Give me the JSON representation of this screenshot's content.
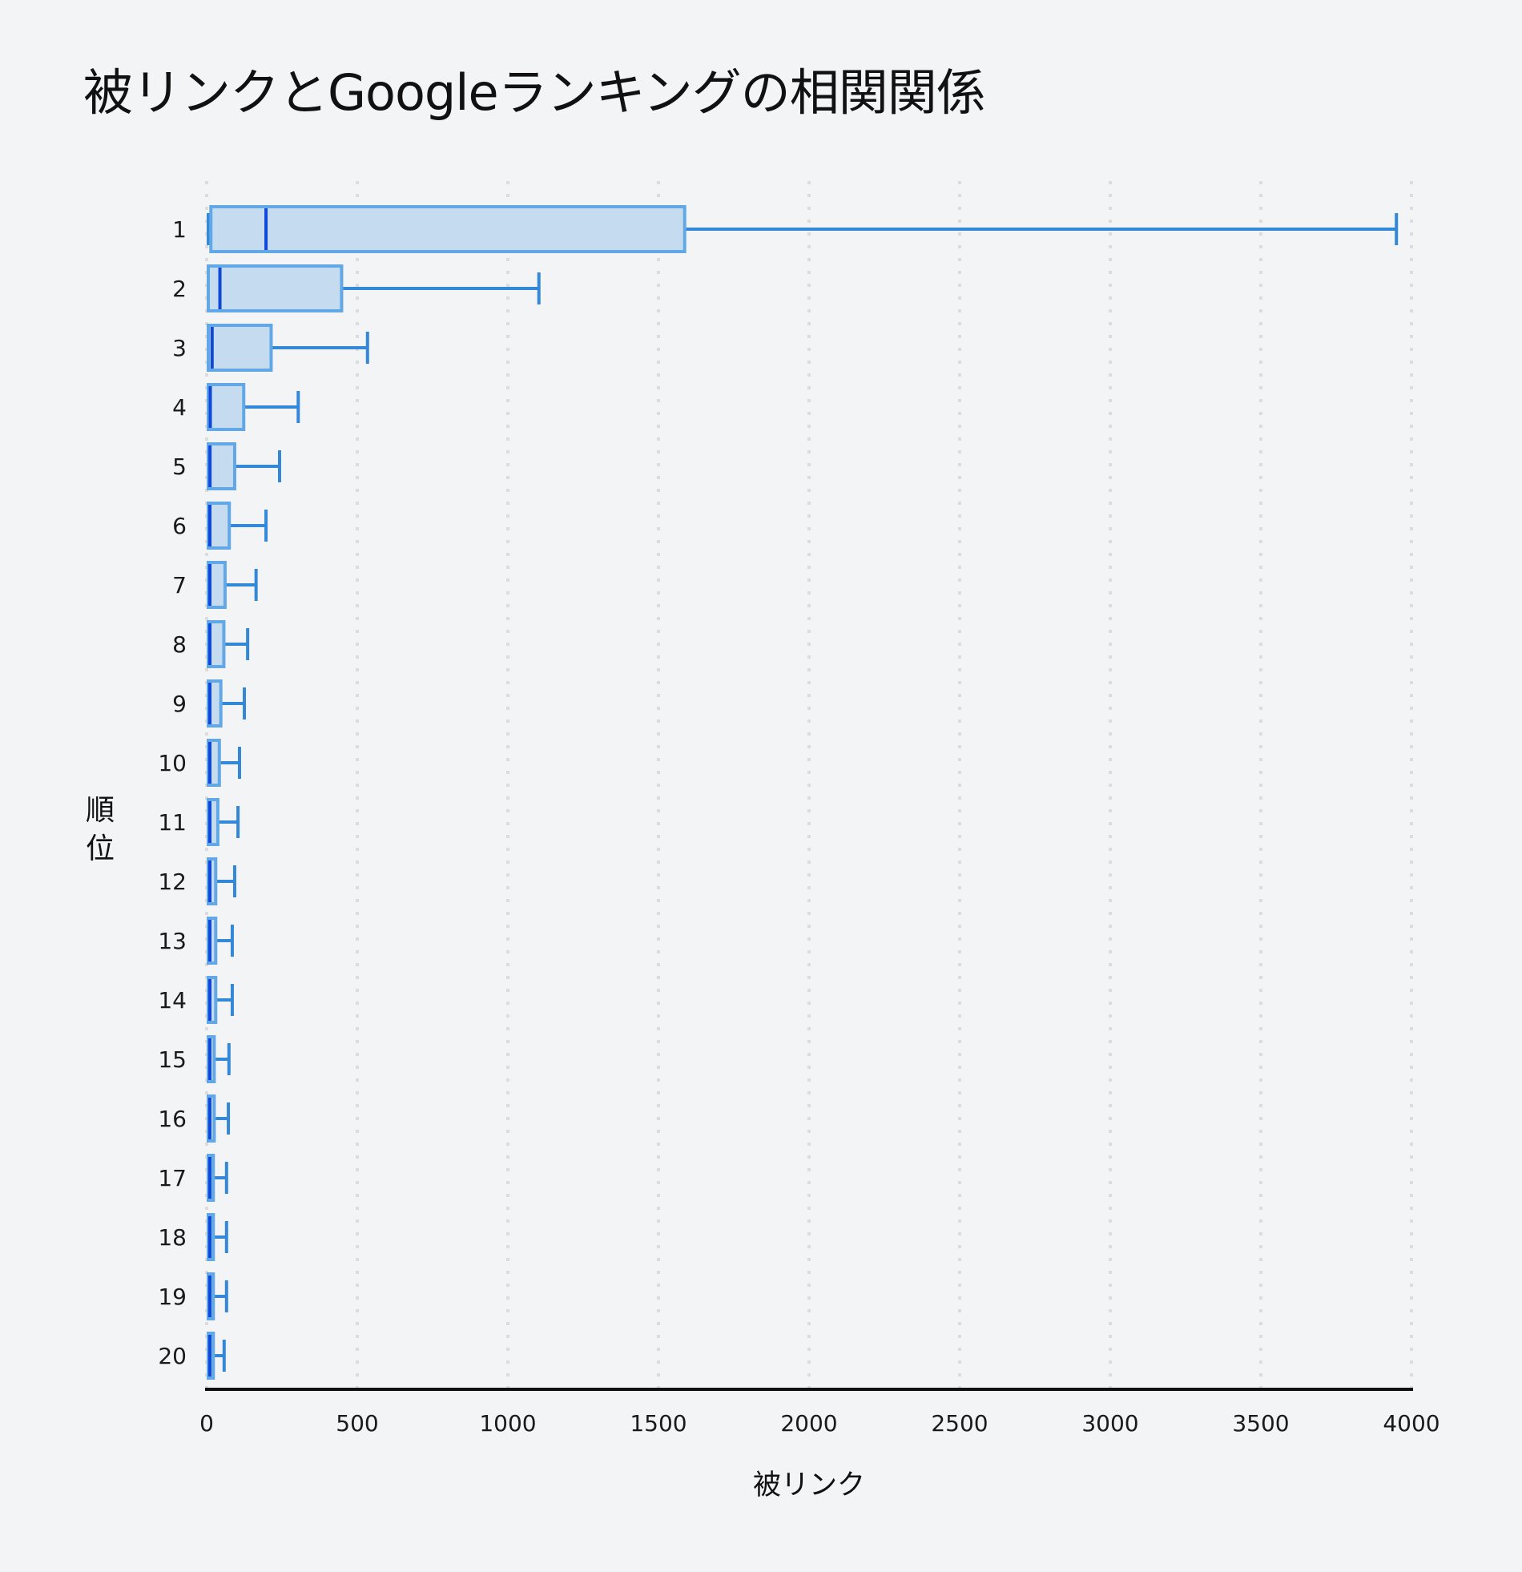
{
  "title": "被リンクとGoogleランキングの相関関係",
  "x_axis": {
    "title": "被リンク",
    "ticks": [
      "0",
      "500",
      "1000",
      "1500",
      "2000",
      "2500",
      "3000",
      "3500",
      "4000"
    ]
  },
  "y_axis": {
    "title_chars": [
      "順",
      "位"
    ]
  },
  "colors": {
    "background": "#F3F4F6",
    "box_fill": "#C5DCF0",
    "box_border": "#62A8E6",
    "whisker": "#3388D8",
    "median": "#1048D8",
    "grid": "#DCDCDC",
    "axis": "#111111"
  },
  "chart_data": {
    "type": "boxplot",
    "orientation": "horizontal",
    "title": "被リンクとGoogleランキングの相関関係",
    "xlabel": "被リンク",
    "ylabel": "順位",
    "xlim": [
      0,
      4000
    ],
    "xticks": [
      0,
      500,
      1000,
      1500,
      2000,
      2500,
      3000,
      3500,
      4000
    ],
    "grid": {
      "x": true,
      "y": false,
      "style": "dotted"
    },
    "categories": [
      "1",
      "2",
      "3",
      "4",
      "5",
      "6",
      "7",
      "8",
      "9",
      "10",
      "11",
      "12",
      "13",
      "14",
      "15",
      "16",
      "17",
      "18",
      "19",
      "20"
    ],
    "series": [
      {
        "rank": "1",
        "min": 0,
        "q1": 14,
        "median": 197,
        "q3": 1587,
        "max": 3950
      },
      {
        "rank": "2",
        "min": 0,
        "q1": 0,
        "median": 44,
        "q3": 448,
        "max": 1103
      },
      {
        "rank": "3",
        "min": 0,
        "q1": 0,
        "median": 18,
        "q3": 214,
        "max": 534
      },
      {
        "rank": "4",
        "min": 0,
        "q1": 0,
        "median": 12,
        "q3": 123,
        "max": 304
      },
      {
        "rank": "5",
        "min": 0,
        "q1": 0,
        "median": 11,
        "q3": 93,
        "max": 242
      },
      {
        "rank": "6",
        "min": 0,
        "q1": 0,
        "median": 1,
        "q3": 75,
        "max": 197
      },
      {
        "rank": "7",
        "min": 0,
        "q1": 0,
        "median": 1,
        "q3": 61,
        "max": 164
      },
      {
        "rank": "8",
        "min": 0,
        "q1": 0,
        "median": 1,
        "q3": 57,
        "max": 136
      },
      {
        "rank": "9",
        "min": 0,
        "q1": 0,
        "median": 1,
        "q3": 47,
        "max": 125
      },
      {
        "rank": "10",
        "min": 0,
        "q1": 0,
        "median": 1,
        "q3": 42,
        "max": 109
      },
      {
        "rank": "11",
        "min": 0,
        "q1": 0,
        "median": 1,
        "q3": 37,
        "max": 104
      },
      {
        "rank": "12",
        "min": 0,
        "q1": 0,
        "median": 1,
        "q3": 30,
        "max": 93
      },
      {
        "rank": "13",
        "min": 0,
        "q1": 0,
        "median": 1,
        "q3": 30,
        "max": 85
      },
      {
        "rank": "14",
        "min": 0,
        "q1": 0,
        "median": 1,
        "q3": 30,
        "max": 85
      },
      {
        "rank": "15",
        "min": 0,
        "q1": 0,
        "median": 1,
        "q3": 25,
        "max": 74
      },
      {
        "rank": "16",
        "min": 0,
        "q1": 0,
        "median": 1,
        "q3": 25,
        "max": 72
      },
      {
        "rank": "17",
        "min": 0,
        "q1": 0,
        "median": 1,
        "q3": 22,
        "max": 66
      },
      {
        "rank": "18",
        "min": 0,
        "q1": 0,
        "median": 1,
        "q3": 22,
        "max": 66
      },
      {
        "rank": "19",
        "min": 0,
        "q1": 0,
        "median": 1,
        "q3": 22,
        "max": 66
      },
      {
        "rank": "20",
        "min": 0,
        "q1": 0,
        "median": 1,
        "q3": 22,
        "max": 58
      }
    ]
  }
}
